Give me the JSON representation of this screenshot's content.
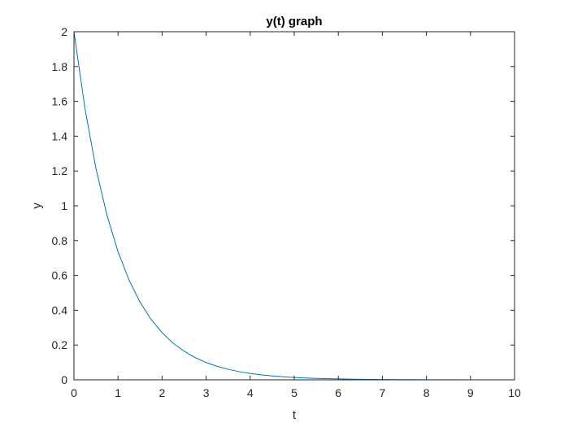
{
  "chart_data": {
    "type": "line",
    "title": "y(t) graph",
    "xlabel": "t",
    "ylabel": "y",
    "xlim": [
      0,
      10
    ],
    "ylim": [
      0,
      2
    ],
    "xticks": [
      0,
      1,
      2,
      3,
      4,
      5,
      6,
      7,
      8,
      9,
      10
    ],
    "yticks": [
      0,
      0.2,
      0.4,
      0.6,
      0.8,
      1,
      1.2,
      1.4,
      1.6,
      1.8,
      2
    ],
    "grid": false,
    "series": [
      {
        "color": "#0072bd",
        "x": [
          0,
          0.25,
          0.5,
          0.75,
          1,
          1.25,
          1.5,
          1.75,
          2,
          2.25,
          2.5,
          2.75,
          3,
          3.25,
          3.5,
          3.75,
          4,
          4.25,
          4.5,
          4.75,
          5,
          5.5,
          6,
          6.5,
          7,
          7.5,
          8,
          8.5,
          9,
          9.5,
          10
        ],
        "y": [
          2,
          1.5576,
          1.2131,
          0.9447,
          0.7358,
          0.573,
          0.4463,
          0.3476,
          0.2707,
          0.2108,
          0.1642,
          0.1279,
          0.0996,
          0.0776,
          0.0604,
          0.047,
          0.0366,
          0.0285,
          0.0222,
          0.0173,
          0.0135,
          0.0082,
          0.005,
          0.003,
          0.0018,
          0.0011,
          0.0007,
          0.0004,
          0.0002,
          0.0001,
          0.0001
        ]
      }
    ]
  }
}
